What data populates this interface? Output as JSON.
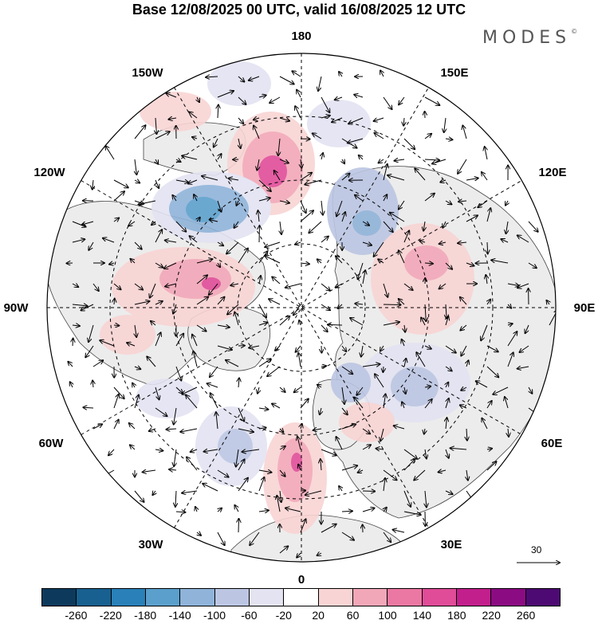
{
  "header": {
    "title": "Base 12/08/2025 00 UTC, valid 16/08/2025 12 UTC",
    "brand": "MODES",
    "brand_mark": "©"
  },
  "map": {
    "projection": "north-polar-stereographic",
    "longitude_labels": [
      "180",
      "150E",
      "120E",
      "90E",
      "60E",
      "30E",
      "0",
      "30W",
      "60W",
      "90W",
      "120W",
      "150W"
    ],
    "reference_vector_label": "30",
    "colorbar": {
      "ticks": [
        "-260",
        "-220",
        "-180",
        "-140",
        "-100",
        "-60",
        "-20",
        "20",
        "60",
        "100",
        "140",
        "180",
        "220",
        "260"
      ],
      "colors": [
        "#0d3a5c",
        "#17608f",
        "#2a80b8",
        "#5b9fcc",
        "#8fb3d9",
        "#bcc6e3",
        "#e3e3f2",
        "#ffffff",
        "#f9d4d4",
        "#f2a7b8",
        "#eb78a2",
        "#e04c98",
        "#c21f8c",
        "#8b0b83",
        "#4d0a73"
      ]
    },
    "colors": {
      "land": "#ececec",
      "ocean": "#ffffff"
    }
  }
}
